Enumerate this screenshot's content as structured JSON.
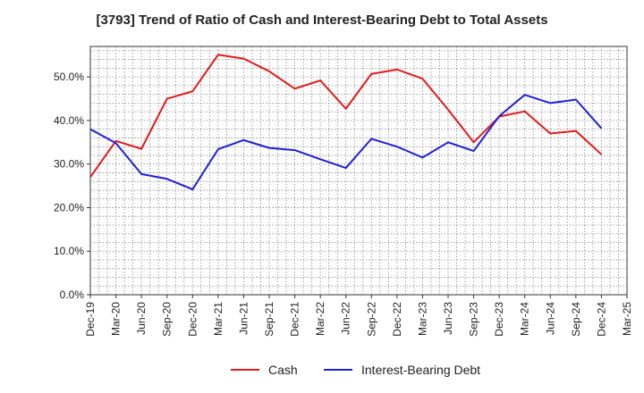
{
  "chart_data": {
    "type": "line",
    "title": "[3793]  Trend of Ratio of Cash and Interest-Bearing Debt to Total Assets",
    "xlabel": "",
    "ylabel": "",
    "ylim": [
      0,
      57
    ],
    "yticks": [
      0,
      10,
      20,
      30,
      40,
      50
    ],
    "ytick_labels": [
      "0.0%",
      "10.0%",
      "20.0%",
      "30.0%",
      "40.0%",
      "50.0%"
    ],
    "categories": [
      "Dec-19",
      "Mar-20",
      "Jun-20",
      "Sep-20",
      "Dec-20",
      "Mar-21",
      "Jun-21",
      "Sep-21",
      "Dec-21",
      "Mar-22",
      "Jun-22",
      "Sep-22",
      "Dec-22",
      "Mar-23",
      "Jun-23",
      "Sep-23",
      "Dec-23",
      "Mar-24",
      "Jun-24",
      "Sep-24",
      "Dec-24",
      "Mar-25"
    ],
    "grid": true,
    "legend_position": "bottom-center",
    "series": [
      {
        "name": "Cash",
        "color": "#e31a1c",
        "values": [
          27.0,
          35.3,
          33.5,
          45.0,
          46.7,
          55.1,
          54.2,
          51.3,
          47.3,
          49.2,
          42.7,
          50.7,
          51.7,
          49.6,
          42.5,
          35.0,
          40.9,
          42.1,
          37.0,
          37.6,
          32.2,
          null
        ]
      },
      {
        "name": "Interest-Bearing Debt",
        "color": "#1f1fd6",
        "values": [
          38.0,
          34.8,
          27.7,
          26.6,
          24.2,
          33.4,
          35.5,
          33.7,
          33.2,
          31.1,
          29.1,
          35.8,
          34.0,
          31.5,
          35.0,
          33.0,
          41.0,
          45.9,
          44.0,
          44.8,
          38.2,
          null
        ]
      }
    ]
  }
}
